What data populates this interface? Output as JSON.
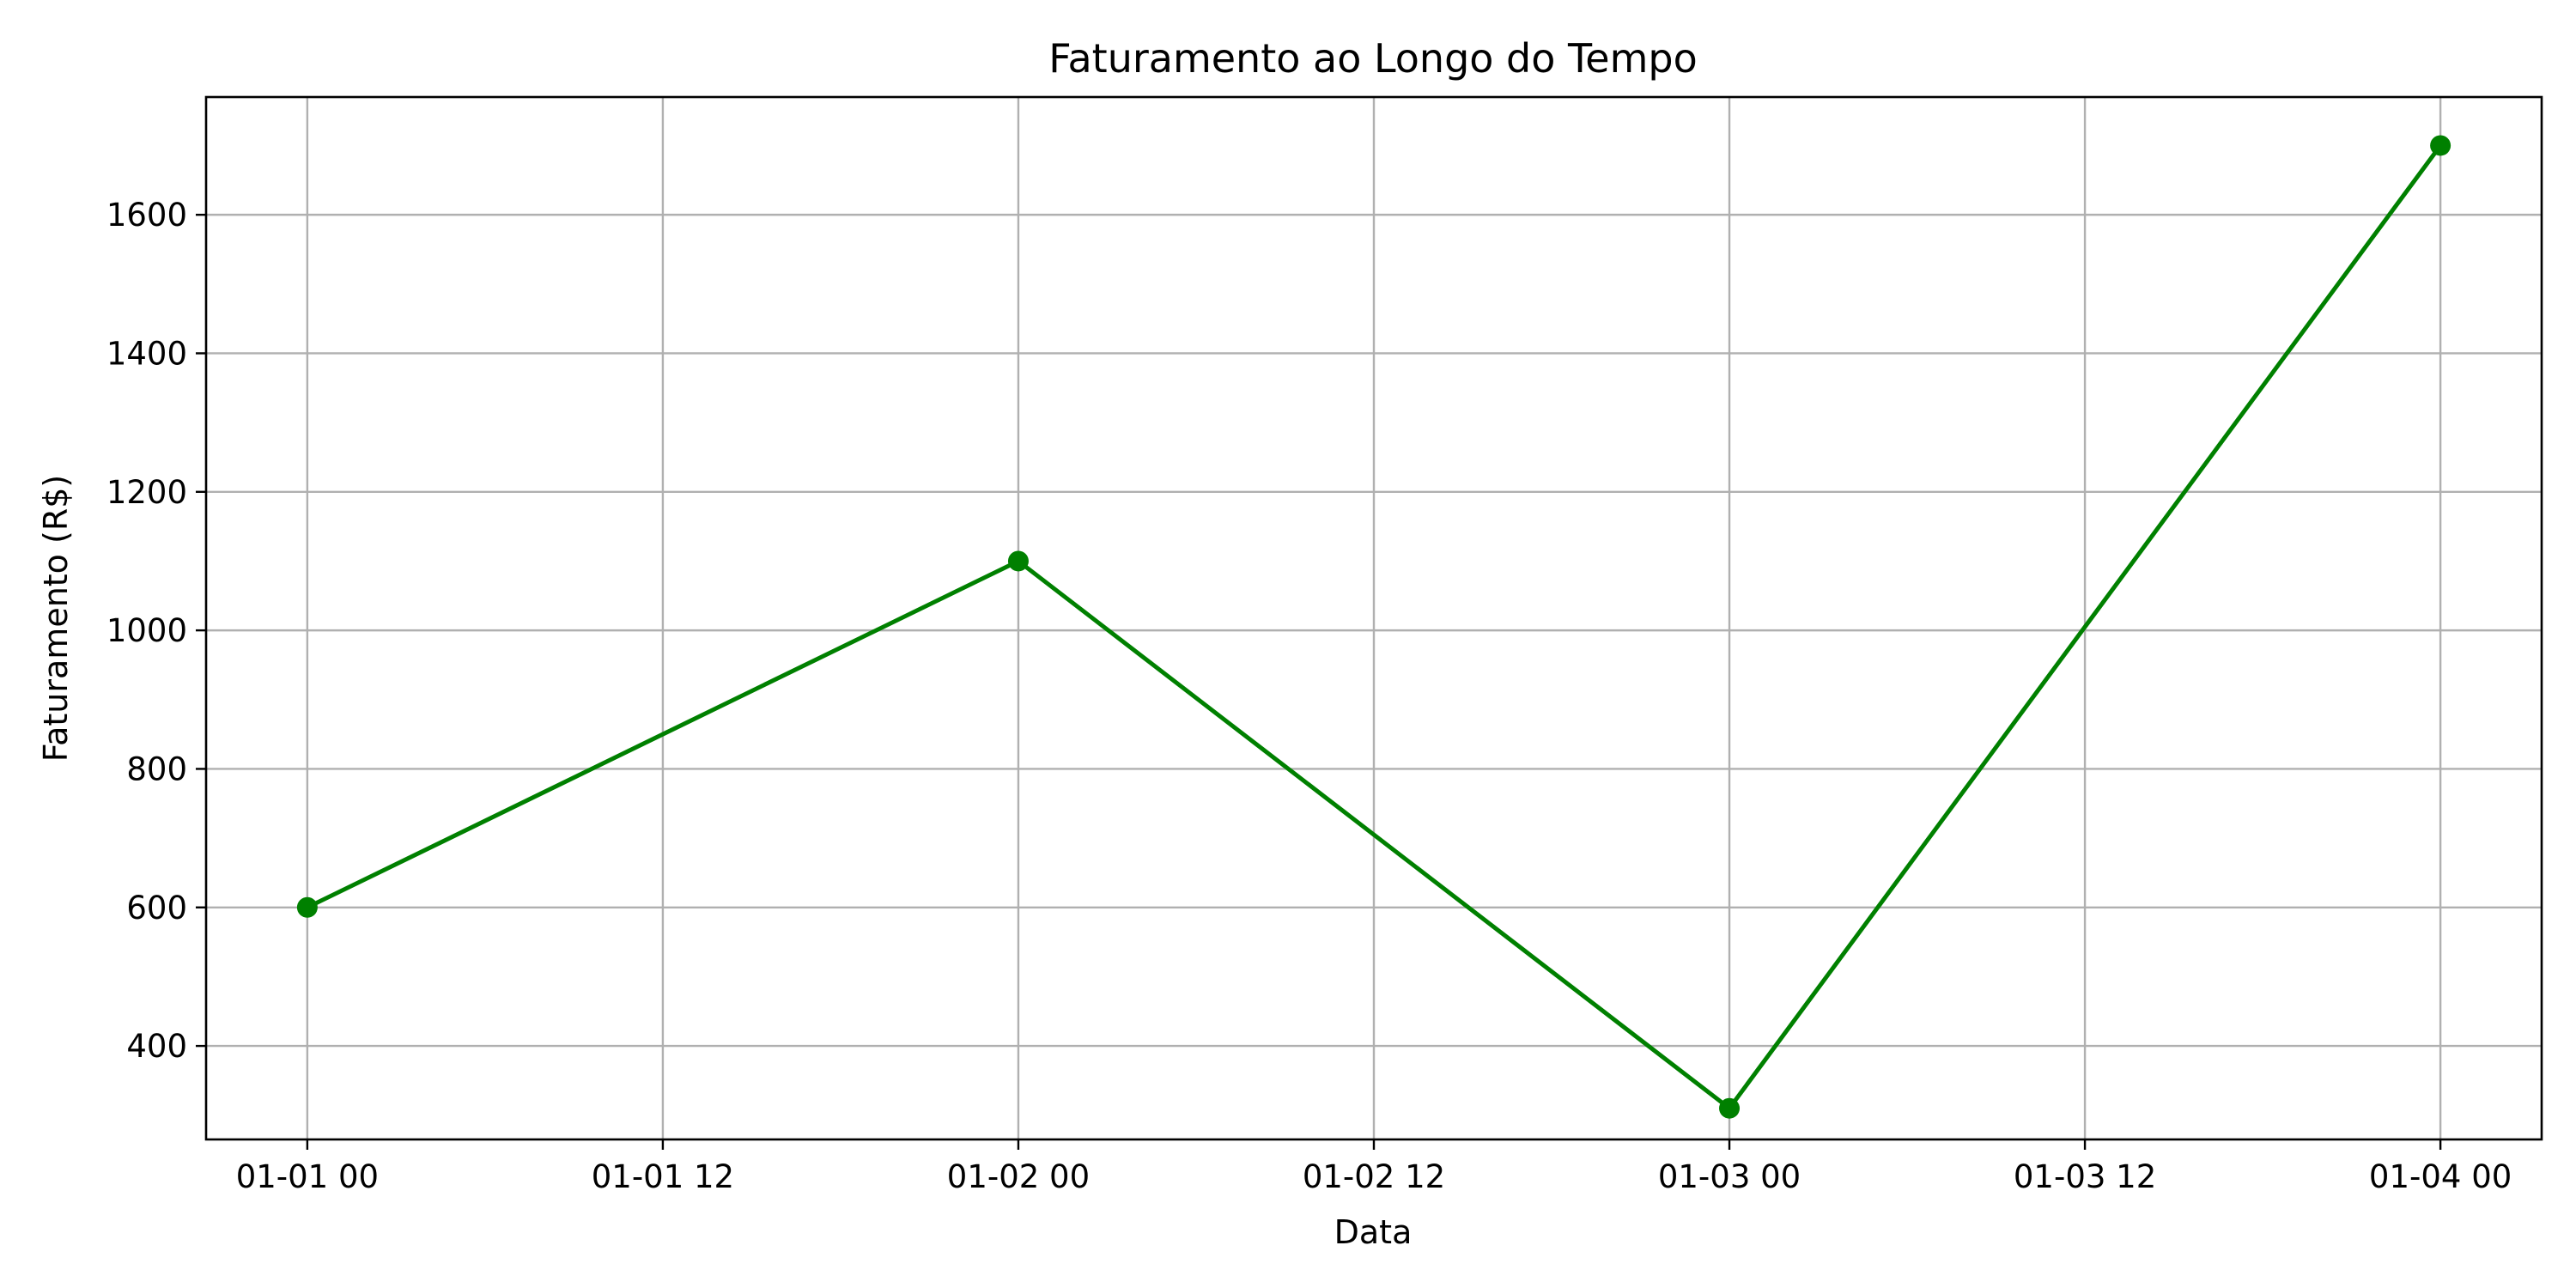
{
  "chart_data": {
    "type": "line",
    "title": "Faturamento ao Longo do Tempo",
    "xlabel": "Data",
    "ylabel": "Faturamento (R$)",
    "x_ticks": [
      "01-01 00",
      "01-01 12",
      "01-02 00",
      "01-02 12",
      "01-03 00",
      "01-03 12",
      "01-04 00"
    ],
    "y_ticks": [
      400,
      600,
      800,
      1000,
      1200,
      1400,
      1600
    ],
    "xlim": [
      "2024-12-31T20:35",
      "2025-01-04T03:25"
    ],
    "ylim": [
      265,
      1770
    ],
    "grid": true,
    "legend": "none",
    "series": [
      {
        "color": "#008000",
        "marker": "circle",
        "points": [
          {
            "x": "2025-01-01T00:00",
            "y": 600
          },
          {
            "x": "2025-01-02T00:00",
            "y": 1100
          },
          {
            "x": "2025-01-03T00:00",
            "y": 310
          },
          {
            "x": "2025-01-04T00:00",
            "y": 1700
          }
        ]
      }
    ]
  }
}
